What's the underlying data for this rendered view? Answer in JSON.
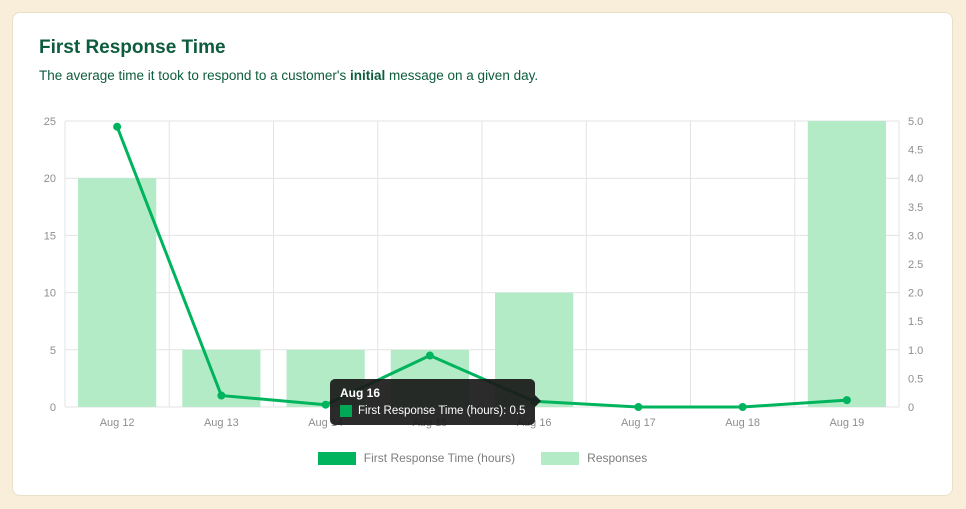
{
  "card": {
    "title": "First Response Time",
    "subtitle_prefix": "The average time it took to respond to a customer's ",
    "subtitle_bold": "initial",
    "subtitle_suffix": " message on a given day."
  },
  "chart_data": {
    "type": "combo",
    "categories": [
      "Aug 12",
      "Aug 13",
      "Aug 14",
      "Aug 15",
      "Aug 16",
      "Aug 17",
      "Aug 18",
      "Aug 19"
    ],
    "series": [
      {
        "name": "First Response Time (hours)",
        "type": "line",
        "axis": "left",
        "color": "#00b45e",
        "values": [
          24.5,
          1.0,
          0.2,
          4.5,
          0.5,
          0,
          0,
          0.6
        ]
      },
      {
        "name": "Responses",
        "type": "bar",
        "axis": "right",
        "color": "#b3ebc7",
        "values": [
          4,
          1,
          1,
          1,
          2,
          0,
          0,
          5
        ]
      }
    ],
    "left_axis": {
      "min": 0,
      "max": 25,
      "tick_labels_top_to_bottom": [
        "25",
        "20",
        "15",
        "10",
        "5",
        "0"
      ]
    },
    "right_axis": {
      "min": 0,
      "max": 5,
      "tick_labels_top_to_bottom": [
        "5.0",
        "4.5",
        "4.0",
        "3.5",
        "3.0",
        "2.5",
        "2.0",
        "1.5",
        "1.0",
        "0.5",
        "0"
      ]
    },
    "grid": true,
    "grid_color": "#e3e3e3",
    "legend_position": "bottom"
  },
  "tooltip": {
    "title": "Aug 16",
    "swatch_color": "#00a855",
    "label": "First Response Time (hours): 0.5"
  }
}
